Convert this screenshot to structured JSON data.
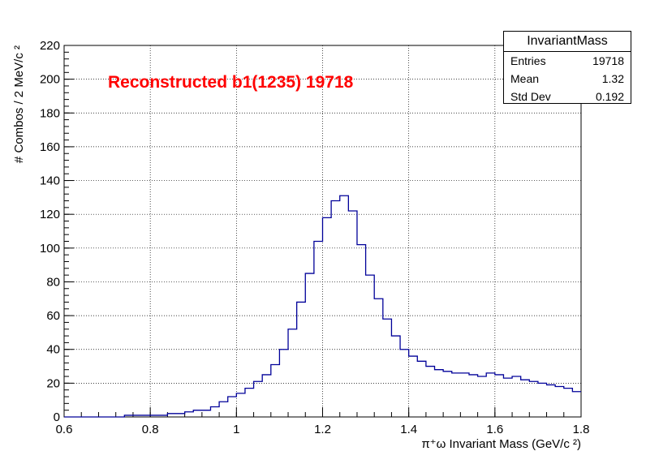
{
  "chart_data": {
    "type": "histogram",
    "title": "Reconstructed b1(1235) 19718",
    "xlabel": "π⁺ω Invariant Mass (GeV/c ²)",
    "ylabel": "# Combos / 2 MeV/c ²",
    "xlim": [
      0.6,
      1.8
    ],
    "ylim": [
      0,
      220
    ],
    "x_ticks": [
      "0.6",
      "0.8",
      "1",
      "1.2",
      "1.4",
      "1.6",
      "1.8"
    ],
    "y_ticks": [
      "0",
      "20",
      "40",
      "60",
      "80",
      "100",
      "120",
      "140",
      "160",
      "180",
      "200",
      "220"
    ],
    "grid": true,
    "line_color": "#000099",
    "title_color": "#ff0000",
    "bin_width": 0.02,
    "bins_x": [
      0.61,
      0.63,
      0.65,
      0.67,
      0.69,
      0.71,
      0.73,
      0.75,
      0.77,
      0.79,
      0.81,
      0.83,
      0.85,
      0.87,
      0.89,
      0.91,
      0.93,
      0.95,
      0.97,
      0.99,
      1.01,
      1.03,
      1.05,
      1.07,
      1.09,
      1.11,
      1.13,
      1.15,
      1.17,
      1.19,
      1.21,
      1.23,
      1.25,
      1.27,
      1.29,
      1.31,
      1.33,
      1.35,
      1.37,
      1.39,
      1.41,
      1.43,
      1.45,
      1.47,
      1.49,
      1.51,
      1.53,
      1.55,
      1.57,
      1.59,
      1.61,
      1.63,
      1.65,
      1.67,
      1.69,
      1.71,
      1.73,
      1.75,
      1.77,
      1.79
    ],
    "values": [
      0,
      0,
      0,
      0,
      0,
      0,
      0,
      1,
      1,
      1,
      1,
      1,
      2,
      2,
      3,
      4,
      4,
      6,
      9,
      12,
      14,
      17,
      21,
      25,
      31,
      40,
      52,
      68,
      85,
      104,
      118,
      128,
      131,
      122,
      102,
      84,
      70,
      58,
      48,
      40,
      36,
      33,
      30,
      28,
      27,
      26,
      26,
      25,
      24,
      26,
      25,
      23,
      24,
      22,
      21,
      20,
      19,
      18,
      17,
      15
    ],
    "stats": {
      "title": "InvariantMass",
      "entries_label": "Entries",
      "entries": "19718",
      "mean_label": "Mean",
      "mean": "1.32",
      "stddev_label": "Std Dev",
      "stddev": "0.192"
    }
  }
}
